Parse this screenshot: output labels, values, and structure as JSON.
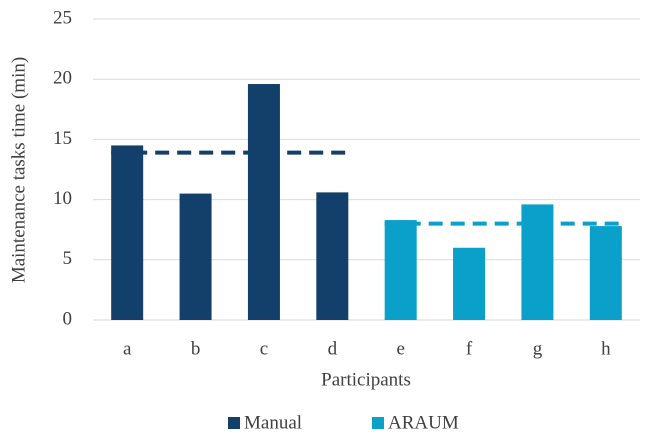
{
  "chart_data": {
    "type": "bar",
    "y_label": "Maintenance tasks time (min)",
    "x_label": "Participants",
    "categories": [
      "a",
      "b",
      "c",
      "d",
      "e",
      "f",
      "g",
      "h"
    ],
    "series": [
      {
        "name": "Manual",
        "color": "#133f6b",
        "values": [
          14.5,
          10.5,
          19.6,
          10.6,
          null,
          null,
          null,
          null
        ],
        "mean": 13.9
      },
      {
        "name": "ARAUM",
        "color": "#0aa0c9",
        "values": [
          null,
          null,
          null,
          null,
          8.3,
          6.0,
          9.6,
          7.8
        ],
        "mean": 8.0
      }
    ],
    "ylim": [
      0,
      25
    ],
    "yticks": [
      0,
      5,
      10,
      15,
      20,
      25
    ],
    "grid": true,
    "legend": "bottom"
  }
}
